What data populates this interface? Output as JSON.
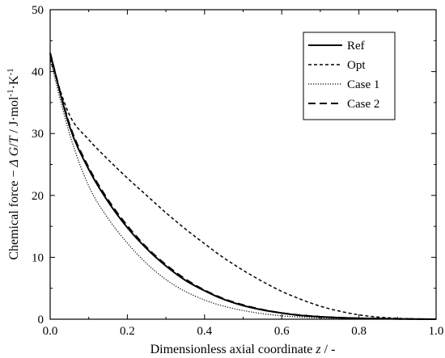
{
  "chart_data": {
    "type": "line",
    "xlabel": "Dimensionless axial coordinate z / -",
    "ylabel": "Chemical force −ΔG/T / J·mol⁻¹·K⁻¹",
    "xlim": [
      0,
      1.0
    ],
    "ylim": [
      0,
      50
    ],
    "xticks": [
      "0.0",
      "0.2",
      "0.4",
      "0.6",
      "0.8",
      "1.0"
    ],
    "yticks": [
      "0",
      "10",
      "20",
      "30",
      "40",
      "50"
    ],
    "grid": false,
    "legend_position": "top-right",
    "x": [
      0.0,
      0.05,
      0.1,
      0.15,
      0.2,
      0.25,
      0.3,
      0.35,
      0.4,
      0.45,
      0.5,
      0.55,
      0.6,
      0.65,
      0.7,
      0.75,
      0.8,
      0.85,
      0.9,
      0.95,
      1.0
    ],
    "series": [
      {
        "name": "Ref",
        "style": "solid",
        "values": [
          43.0,
          31.2,
          24.2,
          19.0,
          14.8,
          11.4,
          8.6,
          6.3,
          4.6,
          3.2,
          2.2,
          1.5,
          1.0,
          0.6,
          0.4,
          0.25,
          0.15,
          0.1,
          0.05,
          0.02,
          0.0
        ]
      },
      {
        "name": "Opt",
        "style": "dashed",
        "values": [
          42.0,
          33.0,
          29.0,
          25.8,
          22.8,
          20.0,
          17.2,
          14.6,
          12.2,
          9.9,
          7.9,
          6.1,
          4.5,
          3.2,
          2.1,
          1.3,
          0.7,
          0.35,
          0.15,
          0.05,
          0.0
        ]
      },
      {
        "name": "Case 1",
        "style": "dotted",
        "values": [
          42.0,
          30.0,
          21.5,
          16.3,
          12.3,
          9.0,
          6.4,
          4.5,
          3.1,
          2.1,
          1.4,
          0.9,
          0.55,
          0.35,
          0.2,
          0.12,
          0.07,
          0.04,
          0.02,
          0.01,
          0.0
        ]
      },
      {
        "name": "Case 2",
        "style": "longdashed",
        "values": [
          43.0,
          31.5,
          24.5,
          19.3,
          15.1,
          11.6,
          8.8,
          6.5,
          4.7,
          3.3,
          2.3,
          1.55,
          1.0,
          0.65,
          0.4,
          0.25,
          0.15,
          0.1,
          0.05,
          0.02,
          0.0
        ]
      }
    ]
  }
}
